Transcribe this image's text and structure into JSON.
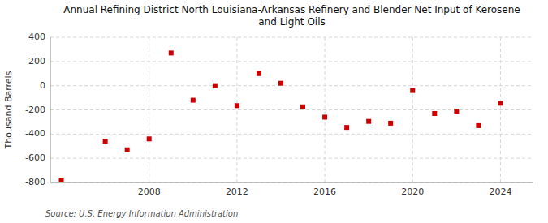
{
  "chart_data": {
    "type": "scatter",
    "title": "Annual Refining District North Louisiana-Arkansas Refinery and Blender Net Input of Kerosene\nand Light Oils",
    "ylabel": "Thousand Barrels",
    "source": "Source: U.S. Energy Information Administration",
    "x": [
      2004,
      2006,
      2007,
      2008,
      2009,
      2010,
      2011,
      2012,
      2013,
      2014,
      2015,
      2016,
      2017,
      2018,
      2019,
      2020,
      2021,
      2022,
      2023,
      2024
    ],
    "values": [
      -780,
      -460,
      -530,
      -440,
      270,
      -120,
      0,
      -165,
      100,
      20,
      -175,
      -260,
      -345,
      -295,
      -310,
      -40,
      -230,
      -210,
      -330,
      -145
    ],
    "color": "#cc0000",
    "marker": "square",
    "xlim": [
      2003.5,
      2025.5
    ],
    "ylim": [
      -800,
      400
    ],
    "xticks": [
      2008,
      2012,
      2016,
      2020,
      2024
    ],
    "yticks": [
      -800,
      -600,
      -400,
      -200,
      0,
      200,
      400
    ],
    "grid": true
  }
}
